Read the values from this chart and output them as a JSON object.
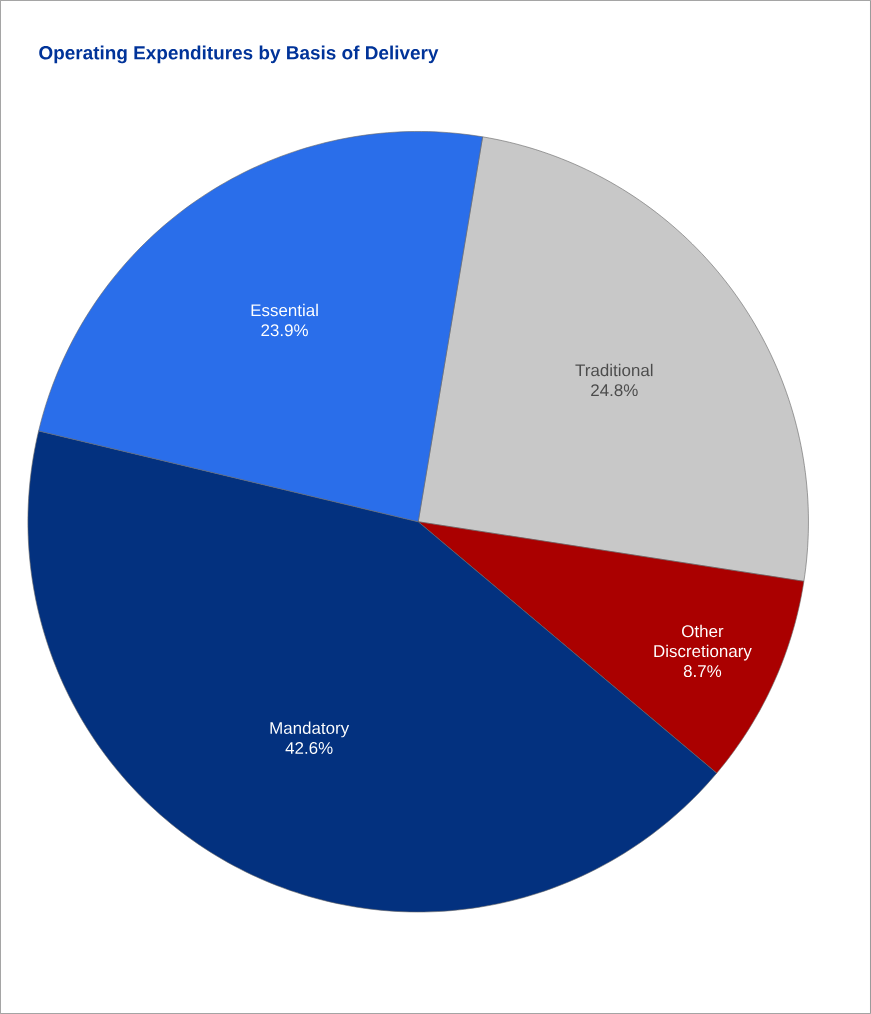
{
  "chart_data": {
    "type": "pie",
    "title": "Operating Expenditures by Basis of Delivery",
    "categories": [
      "Traditional",
      "Other Discretionary",
      "Mandatory",
      "Essential"
    ],
    "values": [
      24.8,
      8.7,
      42.6,
      23.9
    ],
    "value_labels": [
      "24.8%",
      "8.7%",
      "42.6%",
      "23.9%"
    ],
    "colors": [
      "#c8c8c8",
      "#aa0000",
      "#03317f",
      "#2a6eea"
    ]
  }
}
